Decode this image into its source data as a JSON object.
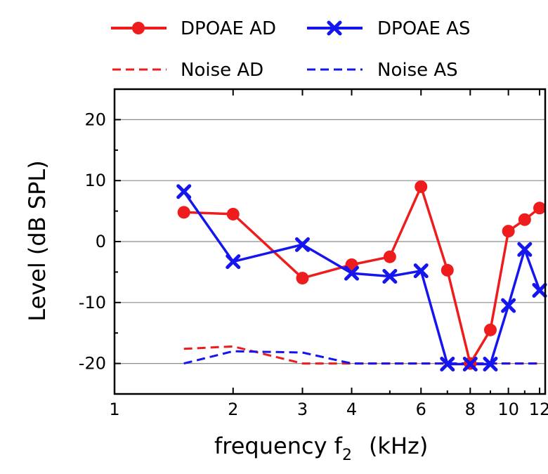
{
  "chart_data": {
    "type": "line",
    "xscale": "log",
    "xlim": [
      1,
      12.4
    ],
    "ylim": [
      -25,
      25
    ],
    "grid": "horizontal",
    "legend_placement": "top",
    "xlabel_main": "frequency f",
    "xlabel_sub": "2",
    "xlabel_unit": "(kHz)",
    "ylabel": "Level  (dB SPL)",
    "x_ticks": [
      1,
      2,
      3,
      4,
      6,
      8,
      10,
      12
    ],
    "x_tick_labels": [
      "1",
      "2",
      "3",
      "4",
      "6",
      "8",
      "10",
      "12"
    ],
    "y_ticks": [
      20,
      10,
      0,
      -10,
      -20
    ],
    "y_tick_labels": [
      "20",
      "10",
      "0",
      "-10",
      "-20"
    ],
    "series": [
      {
        "name": "DPOAE AD",
        "color": "#ee1c1c",
        "style": "solid",
        "marker": "circle",
        "x": [
          1.5,
          2,
          3,
          4,
          5,
          6,
          7,
          8,
          9,
          10,
          11,
          12
        ],
        "y": [
          4.8,
          4.5,
          -6.0,
          -3.8,
          -2.5,
          9.0,
          -4.7,
          -20.0,
          -14.5,
          1.7,
          3.6,
          5.5
        ]
      },
      {
        "name": "DPOAE AS",
        "color": "#1515ee",
        "style": "solid",
        "marker": "x",
        "x": [
          1.5,
          2,
          3,
          4,
          5,
          6,
          7,
          8,
          9,
          10,
          11,
          12
        ],
        "y": [
          8.2,
          -3.3,
          -0.5,
          -5.2,
          -5.7,
          -4.8,
          -20.1,
          -20.1,
          -20.1,
          -10.5,
          -1.3,
          -8.0
        ]
      },
      {
        "name": "Noise AD",
        "color": "#ee1c1c",
        "style": "dashed",
        "marker": "none",
        "x": [
          1.5,
          2,
          3,
          4,
          5,
          6,
          7,
          8,
          9,
          10,
          11,
          12
        ],
        "y": [
          -17.6,
          -17.2,
          -20.0,
          -20.0,
          -20.0,
          -20.0,
          -20.0,
          -20.0,
          -20.0,
          -20.0,
          -20.0,
          -20.0
        ]
      },
      {
        "name": "Noise AS",
        "color": "#1515ee",
        "style": "dashed",
        "marker": "none",
        "x": [
          1.5,
          2,
          3,
          4,
          5,
          6,
          7,
          8,
          9,
          10,
          11,
          12
        ],
        "y": [
          -20.0,
          -18.0,
          -18.2,
          -20.0,
          -20.0,
          -20.0,
          -20.0,
          -20.0,
          -20.0,
          -20.0,
          -20.0,
          -20.0
        ]
      }
    ]
  }
}
